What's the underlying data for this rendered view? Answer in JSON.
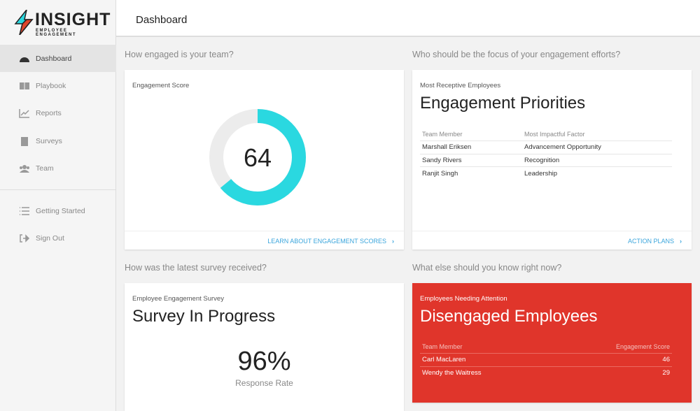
{
  "brand": {
    "name": "INSIGHT",
    "tagline": "EMPLOYEE ENGAGEMENT"
  },
  "sidebar": {
    "items": [
      {
        "label": "Dashboard",
        "icon": "gauge-icon"
      },
      {
        "label": "Playbook",
        "icon": "book-icon"
      },
      {
        "label": "Reports",
        "icon": "chart-icon"
      },
      {
        "label": "Surveys",
        "icon": "clipboard-icon"
      },
      {
        "label": "Team",
        "icon": "users-icon"
      },
      {
        "label": "Getting Started",
        "icon": "list-icon"
      },
      {
        "label": "Sign Out",
        "icon": "sign-out-icon"
      }
    ]
  },
  "header": {
    "title": "Dashboard"
  },
  "sections": {
    "q1": "How engaged is your team?",
    "q2": "Who should be the focus of your engagement efforts?",
    "q3": "How was the latest survey received?",
    "q4": "What else should you know right now?"
  },
  "score_card": {
    "label": "Engagement Score",
    "value": "64",
    "percent": 64,
    "link": "LEARN ABOUT ENGAGEMENT SCORES",
    "color": "#2ad8e0"
  },
  "priorities": {
    "label": "Most Receptive Employees",
    "title": "Engagement Priorities",
    "headers": [
      "Team Member",
      "Most Impactful Factor"
    ],
    "rows": [
      [
        "Marshall Eriksen",
        "Advancement Opportunity"
      ],
      [
        "Sandy Rivers",
        "Recognition"
      ],
      [
        "Ranjit Singh",
        "Leadership"
      ]
    ],
    "link": "ACTION PLANS"
  },
  "survey": {
    "label": "Employee Engagement Survey",
    "title": "Survey In Progress",
    "rate": "96%",
    "rate_label": "Response Rate"
  },
  "disengaged": {
    "label": "Employees Needing Attention",
    "title": "Disengaged Employees",
    "headers": [
      "Team Member",
      "Engagement Score"
    ],
    "rows": [
      [
        "Carl MacLaren",
        "46"
      ],
      [
        "Wendy the Waitress",
        "29"
      ]
    ],
    "color": "#e0352b"
  }
}
